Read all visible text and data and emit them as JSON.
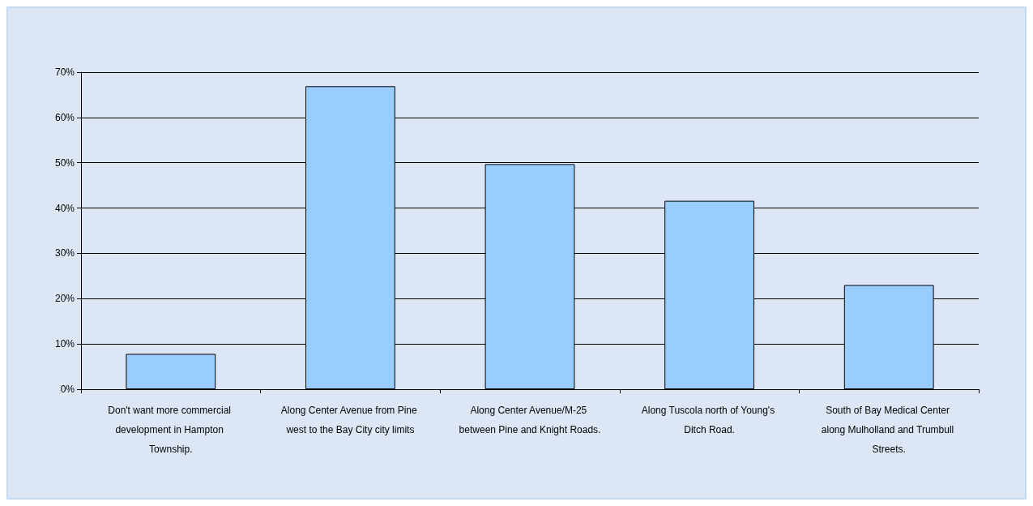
{
  "chart_data": {
    "type": "bar",
    "categories": [
      "Don't want more commercial development in Hampton Township.",
      "Along Center Avenue from Pine west to the Bay City city limits",
      "Along Center Avenue/M-25 between Pine and Knight Roads.",
      "Along Tuscola north of Young's Ditch Road.",
      "South of Bay Medical Center along Mulholland and Trumbull Streets."
    ],
    "values": [
      7.8,
      66.9,
      49.7,
      41.6,
      23.0
    ],
    "color": "#99ccff",
    "ylim": [
      0,
      70
    ],
    "yticks": [
      {
        "value": 0,
        "label": "0%"
      },
      {
        "value": 10,
        "label": "10%"
      },
      {
        "value": 20,
        "label": "20%"
      },
      {
        "value": 30,
        "label": "30%"
      },
      {
        "value": 40,
        "label": "40%"
      },
      {
        "value": 50,
        "label": "50%"
      },
      {
        "value": 60,
        "label": "60%"
      },
      {
        "value": 70,
        "label": "70%"
      }
    ],
    "grid": "y"
  }
}
